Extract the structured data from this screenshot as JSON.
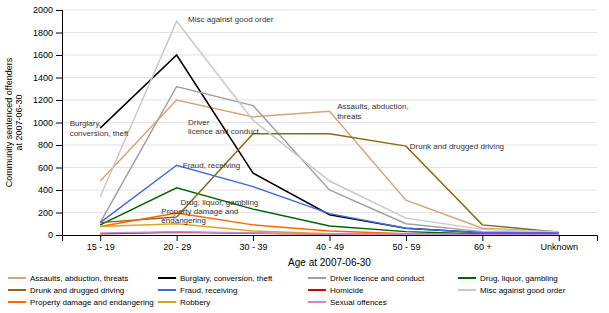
{
  "chart_data": {
    "type": "line",
    "xlabel": "Age at 2007-06-30",
    "ylabel": "Community sentenced offenders\nat 2007-06-30",
    "categories": [
      "15 - 19",
      "20 - 29",
      "30 - 39",
      "40 - 49",
      "50 - 59",
      "60 +",
      "Unknown"
    ],
    "series": [
      {
        "name": "Assaults, abduction, threats",
        "color": "#D2A679",
        "values": [
          480,
          1200,
          1050,
          1100,
          310,
          60,
          30
        ]
      },
      {
        "name": "Burglary, conversion, theft",
        "color": "#000000",
        "values": [
          950,
          1600,
          550,
          180,
          60,
          20,
          20
        ]
      },
      {
        "name": "Driver licence and conduct",
        "color": "#A0A0A0",
        "values": [
          110,
          1320,
          1150,
          400,
          100,
          30,
          20
        ]
      },
      {
        "name": "Drug, liquor, gambling",
        "color": "#006400",
        "values": [
          90,
          420,
          230,
          80,
          30,
          10,
          10
        ]
      },
      {
        "name": "Drunk and drugged driving",
        "color": "#8B6914",
        "values": [
          110,
          160,
          900,
          900,
          790,
          90,
          25
        ]
      },
      {
        "name": "Fraud, receiving",
        "color": "#4169E1",
        "values": [
          110,
          620,
          430,
          190,
          60,
          20,
          20
        ]
      },
      {
        "name": "Homicide",
        "color": "#CC0000",
        "values": [
          10,
          25,
          15,
          8,
          4,
          2,
          3
        ]
      },
      {
        "name": "Misc against good order",
        "color": "#C8C8C8",
        "values": [
          340,
          1900,
          1020,
          480,
          150,
          50,
          30
        ]
      },
      {
        "name": "Property damage and endangering",
        "color": "#FF6600",
        "values": [
          75,
          195,
          90,
          35,
          12,
          4,
          4
        ]
      },
      {
        "name": "Robbery",
        "color": "#DAA520",
        "values": [
          75,
          100,
          35,
          12,
          5,
          2,
          2
        ]
      },
      {
        "name": "Sexual offences",
        "color": "#CC88CC",
        "values": [
          18,
          28,
          18,
          8,
          4,
          2,
          2
        ]
      }
    ],
    "ylim": [
      0,
      2000
    ],
    "yticks": [
      0,
      200,
      400,
      600,
      800,
      1000,
      1200,
      1400,
      1600,
      1800,
      2000
    ],
    "grid": true,
    "legend": "bottom",
    "annotations": [
      {
        "text": "Misc against good order",
        "x": "20 - 29",
        "y": 1900
      },
      {
        "text": "Burglary,\nconversion, theft",
        "x": "15 - 19",
        "y": 950
      },
      {
        "text": "Driver\nlicence and conduct",
        "x": "30 - 39",
        "y": 1150
      },
      {
        "text": "Assaults, abduction,\nthreats",
        "x": "40 - 49",
        "y": 1100
      },
      {
        "text": "Drunk and drugged driving",
        "x": "50 - 59",
        "y": 790
      },
      {
        "text": "Fraud, receiving",
        "x": "20 - 29",
        "y": 620
      },
      {
        "text": "Drug, liquor, gambling",
        "x": "30 - 39",
        "y": 230
      },
      {
        "text": "Property damage and\nendangering",
        "x": "30 - 39",
        "y": 90
      }
    ]
  }
}
